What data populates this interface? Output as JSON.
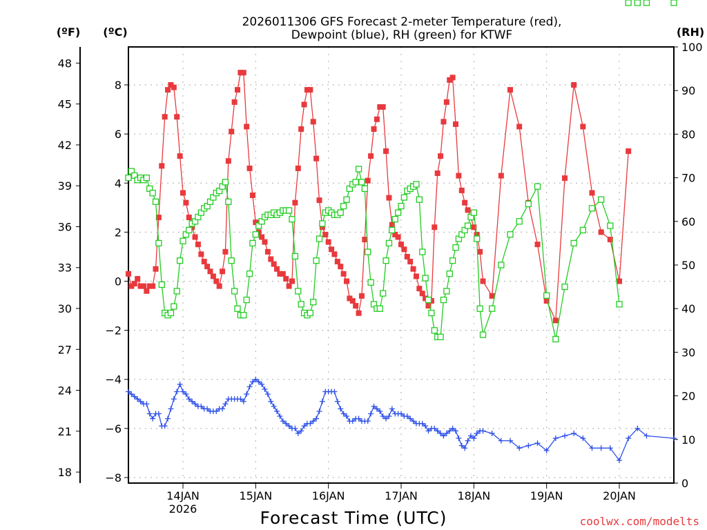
{
  "chart_data": {
    "type": "line",
    "title_line1": "2026011306 GFS Forecast 2-meter Temperature (red),",
    "title_line2": "Dewpoint (blue), RH (green) for KTWF",
    "xlabel": "Forecast Time (UTC)",
    "credit": "coolwx.com/modelts",
    "x_units": "hours since 2026-01-13 06Z",
    "xlim": [
      0,
      180
    ],
    "x_ticks": [
      {
        "hour": 18,
        "label": "14JAN",
        "sub": "2026"
      },
      {
        "hour": 42,
        "label": "15JAN",
        "sub": ""
      },
      {
        "hour": 66,
        "label": "16JAN",
        "sub": ""
      },
      {
        "hour": 90,
        "label": "17JAN",
        "sub": ""
      },
      {
        "hour": 114,
        "label": "18JAN",
        "sub": ""
      },
      {
        "hour": 138,
        "label": "19JAN",
        "sub": ""
      },
      {
        "hour": 162,
        "label": "20JAN",
        "sub": ""
      }
    ],
    "axes": {
      "fahrenheit": {
        "label": "(ºF)",
        "ticks": [
          18,
          21,
          24,
          27,
          30,
          33,
          36,
          39,
          42,
          45,
          48
        ]
      },
      "celsius": {
        "label": "(ºC)",
        "ticks": [
          -8,
          -6,
          -4,
          -2,
          0,
          2,
          4,
          6,
          8
        ],
        "ylim": [
          -8.2,
          9.3
        ]
      },
      "rh": {
        "label": "(RH)",
        "ticks": [
          0,
          10,
          20,
          30,
          40,
          50,
          60,
          70,
          80,
          90,
          100
        ],
        "ylim": [
          0,
          100
        ]
      }
    },
    "grid": true,
    "series": [
      {
        "name": "Temperature",
        "units": "C",
        "color": "#e8393d",
        "marker": "filled-square",
        "hours": [
          0,
          1,
          2,
          3,
          4,
          5,
          6,
          7,
          8,
          9,
          10,
          11,
          12,
          13,
          14,
          15,
          16,
          17,
          18,
          19,
          20,
          21,
          22,
          23,
          24,
          25,
          26,
          27,
          28,
          29,
          30,
          31,
          32,
          33,
          34,
          35,
          36,
          37,
          38,
          39,
          40,
          41,
          42,
          43,
          44,
          45,
          46,
          47,
          48,
          49,
          50,
          51,
          52,
          53,
          54,
          55,
          56,
          57,
          58,
          59,
          60,
          61,
          62,
          63,
          64,
          65,
          66,
          67,
          68,
          69,
          70,
          71,
          72,
          73,
          74,
          75,
          76,
          77,
          78,
          79,
          80,
          81,
          82,
          83,
          84,
          85,
          86,
          87,
          88,
          89,
          90,
          91,
          92,
          93,
          94,
          95,
          96,
          97,
          98,
          99,
          100,
          101,
          102,
          103,
          104,
          105,
          106,
          107,
          108,
          109,
          110,
          111,
          112,
          113,
          114,
          115,
          116,
          117,
          120,
          123,
          126,
          129,
          132,
          135,
          138,
          141,
          144,
          147,
          150,
          153,
          156,
          159,
          162,
          165,
          168,
          171,
          180
        ],
        "values": [
          0.3,
          -0.2,
          -0.1,
          0.1,
          -0.2,
          -0.2,
          -0.4,
          -0.2,
          -0.2,
          0.5,
          2.6,
          4.7,
          6.7,
          7.8,
          8.0,
          7.9,
          6.7,
          5.1,
          3.6,
          3.2,
          2.6,
          2.2,
          1.8,
          1.5,
          1.1,
          0.8,
          0.6,
          0.4,
          0.2,
          0.0,
          -0.2,
          0.4,
          1.2,
          4.9,
          6.1,
          7.3,
          7.8,
          8.5,
          8.5,
          6.3,
          4.6,
          3.5,
          2.4,
          2.0,
          1.8,
          1.6,
          1.2,
          0.9,
          0.7,
          0.5,
          0.3,
          0.3,
          0.1,
          -0.2,
          0.0,
          3.2,
          4.6,
          6.2,
          7.2,
          7.8,
          7.8,
          6.5,
          5.0,
          3.3,
          2.2,
          1.9,
          1.6,
          1.3,
          1.1,
          0.8,
          0.6,
          0.3,
          0.0,
          -0.7,
          -0.8,
          -1.0,
          -1.3,
          -0.6,
          1.7,
          4.1,
          5.1,
          6.2,
          6.6,
          7.1,
          7.1,
          5.3,
          3.4,
          2.3,
          1.9,
          1.8,
          1.5,
          1.3,
          1.0,
          0.8,
          0.5,
          0.2,
          -0.3,
          -0.5,
          -0.7,
          -1.0,
          -0.8,
          2.2,
          4.4,
          5.1,
          6.5,
          7.3,
          8.2,
          8.3,
          6.4,
          4.3,
          3.7,
          3.2,
          2.9,
          2.6,
          2.2,
          1.9,
          1.2,
          0.0,
          -0.6,
          4.3,
          7.8,
          6.3,
          3.2,
          1.5,
          -0.8,
          -1.6,
          4.2,
          8.0,
          6.3,
          3.6,
          2.0,
          1.7,
          0.0,
          5.3
        ]
      },
      {
        "name": "Dewpoint",
        "units": "C",
        "color": "#2c4fe8",
        "marker": "plus",
        "hours": [
          0,
          1,
          2,
          3,
          4,
          5,
          6,
          7,
          8,
          9,
          10,
          11,
          12,
          13,
          14,
          15,
          16,
          17,
          18,
          19,
          20,
          21,
          22,
          23,
          24,
          25,
          26,
          27,
          28,
          29,
          30,
          31,
          32,
          33,
          34,
          35,
          36,
          37,
          38,
          39,
          40,
          41,
          42,
          43,
          44,
          45,
          46,
          47,
          48,
          49,
          50,
          51,
          52,
          53,
          54,
          55,
          56,
          57,
          58,
          59,
          60,
          61,
          62,
          63,
          64,
          65,
          66,
          67,
          68,
          69,
          70,
          71,
          72,
          73,
          74,
          75,
          76,
          77,
          78,
          79,
          80,
          81,
          82,
          83,
          84,
          85,
          86,
          87,
          88,
          89,
          90,
          91,
          92,
          93,
          94,
          95,
          96,
          97,
          98,
          99,
          100,
          101,
          102,
          103,
          104,
          105,
          106,
          107,
          108,
          109,
          110,
          111,
          112,
          113,
          114,
          115,
          116,
          117,
          120,
          123,
          126,
          129,
          132,
          135,
          138,
          141,
          144,
          147,
          150,
          153,
          156,
          159,
          162,
          165,
          168,
          171,
          180
        ],
        "values": [
          -4.5,
          -4.6,
          -4.7,
          -4.8,
          -4.9,
          -5.0,
          -5.0,
          -5.4,
          -5.6,
          -5.4,
          -5.4,
          -5.9,
          -5.9,
          -5.6,
          -5.2,
          -4.8,
          -4.5,
          -4.2,
          -4.5,
          -4.6,
          -4.8,
          -4.9,
          -5.0,
          -5.1,
          -5.1,
          -5.2,
          -5.2,
          -5.3,
          -5.3,
          -5.3,
          -5.2,
          -5.2,
          -5.0,
          -4.8,
          -4.8,
          -4.8,
          -4.8,
          -4.8,
          -4.9,
          -4.6,
          -4.3,
          -4.1,
          -4.0,
          -4.1,
          -4.2,
          -4.4,
          -4.6,
          -4.9,
          -5.1,
          -5.3,
          -5.5,
          -5.7,
          -5.8,
          -5.9,
          -6.0,
          -6.0,
          -6.2,
          -6.1,
          -5.9,
          -5.8,
          -5.8,
          -5.7,
          -5.6,
          -5.3,
          -4.9,
          -4.5,
          -4.5,
          -4.5,
          -4.5,
          -4.9,
          -5.2,
          -5.4,
          -5.5,
          -5.7,
          -5.7,
          -5.6,
          -5.6,
          -5.7,
          -5.7,
          -5.7,
          -5.4,
          -5.1,
          -5.2,
          -5.3,
          -5.5,
          -5.6,
          -5.5,
          -5.2,
          -5.4,
          -5.4,
          -5.4,
          -5.5,
          -5.5,
          -5.6,
          -5.7,
          -5.8,
          -5.8,
          -5.8,
          -5.9,
          -6.1,
          -6.0,
          -6.0,
          -6.1,
          -6.2,
          -6.3,
          -6.2,
          -6.1,
          -6.0,
          -6.1,
          -6.4,
          -6.7,
          -6.8,
          -6.5,
          -6.3,
          -6.4,
          -6.2,
          -6.1,
          -6.1,
          -6.2,
          -6.5,
          -6.5,
          -6.8,
          -6.7,
          -6.6,
          -6.9,
          -6.4,
          -6.3,
          -6.2,
          -6.4,
          -6.8,
          -6.8,
          -6.8,
          -7.3,
          -6.4,
          -6.0,
          -6.3,
          -6.4,
          -6.6,
          -7.0,
          -6.9
        ]
      },
      {
        "name": "RH",
        "units": "%",
        "color": "#22cc22",
        "marker": "open-square",
        "hours": [
          0,
          1,
          2,
          3,
          4,
          5,
          6,
          7,
          8,
          9,
          10,
          11,
          12,
          13,
          14,
          15,
          16,
          17,
          18,
          19,
          20,
          21,
          22,
          23,
          24,
          25,
          26,
          27,
          28,
          29,
          30,
          31,
          32,
          33,
          34,
          35,
          36,
          37,
          38,
          39,
          40,
          41,
          42,
          43,
          44,
          45,
          46,
          47,
          48,
          49,
          50,
          51,
          52,
          53,
          54,
          55,
          56,
          57,
          58,
          59,
          60,
          61,
          62,
          63,
          64,
          65,
          66,
          67,
          68,
          69,
          70,
          71,
          72,
          73,
          74,
          75,
          76,
          77,
          78,
          79,
          80,
          81,
          82,
          83,
          84,
          85,
          86,
          87,
          88,
          89,
          90,
          91,
          92,
          93,
          94,
          95,
          96,
          97,
          98,
          99,
          100,
          101,
          102,
          103,
          104,
          105,
          106,
          107,
          108,
          109,
          110,
          111,
          112,
          113,
          114,
          115,
          116,
          117,
          120,
          123,
          126,
          129,
          132,
          135,
          138,
          141,
          144,
          147,
          150,
          153,
          156,
          159,
          162,
          165,
          168,
          171,
          180
        ],
        "values": [
          70,
          71.5,
          70.5,
          69.5,
          70,
          69.5,
          70,
          67.5,
          66.5,
          64.5,
          55,
          45.5,
          39,
          38.5,
          39,
          40.5,
          44,
          51,
          55.5,
          57,
          58,
          59.5,
          60,
          61,
          62,
          63,
          63.5,
          64.5,
          65.5,
          66.5,
          67,
          68,
          69,
          64.5,
          51,
          44,
          40,
          38.5,
          38.5,
          42,
          48,
          55,
          57,
          59,
          60,
          61,
          61.5,
          61.5,
          62,
          61.5,
          62,
          62.5,
          62.5,
          62.5,
          60.5,
          52,
          44,
          41,
          39,
          38.5,
          39,
          41.5,
          51,
          56,
          59.5,
          62,
          62.5,
          62,
          61.5,
          61.5,
          62,
          63.5,
          65,
          67.5,
          68.5,
          69,
          72,
          69,
          67.5,
          53,
          46,
          41,
          40,
          40,
          43.5,
          51,
          55,
          58,
          60.5,
          62,
          63.5,
          65.5,
          67,
          67.5,
          68,
          68.5,
          65,
          53,
          47,
          42,
          39,
          35,
          33.5,
          33.5,
          42,
          44,
          48,
          51,
          54,
          56,
          57,
          58,
          59,
          61,
          62,
          56,
          40,
          34,
          40,
          50,
          57,
          60,
          64,
          68,
          43,
          33,
          45,
          55,
          58,
          63,
          65,
          59,
          41
        ]
      }
    ]
  }
}
